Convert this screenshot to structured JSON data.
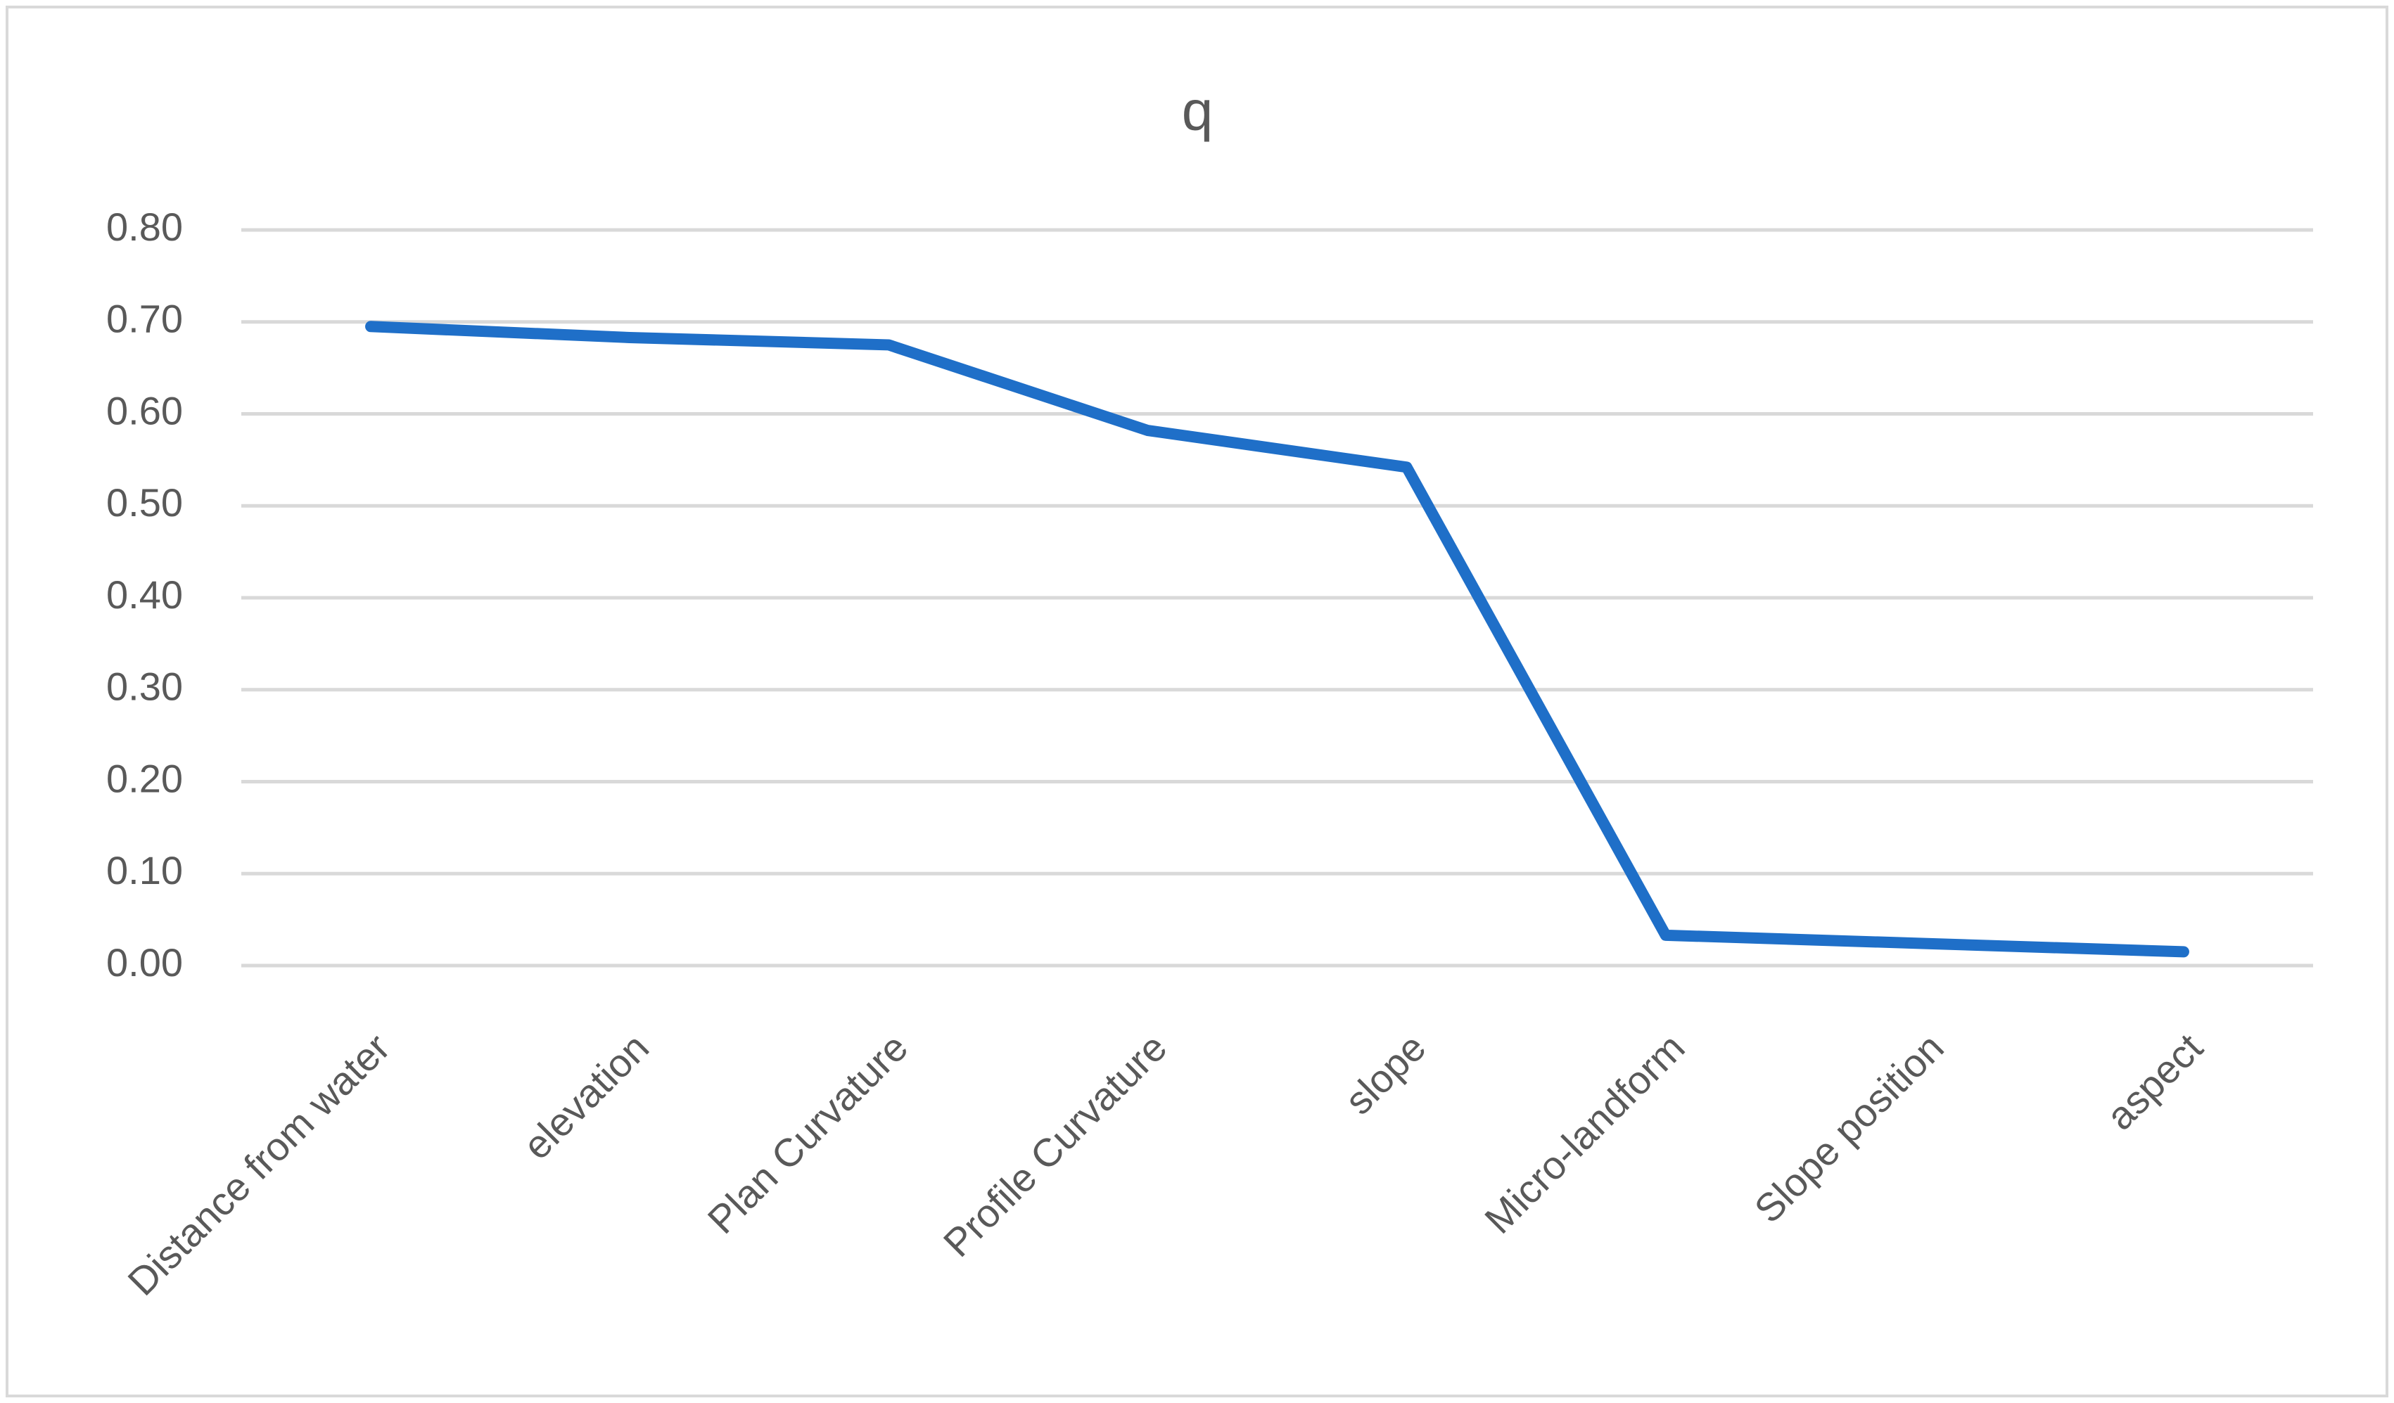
{
  "chart_data": {
    "type": "line",
    "title": "q",
    "categories": [
      "Distance from water",
      "elevation",
      "Plan Curvature",
      "Profile Curvature",
      "slope",
      "Micro-landform",
      "Slope position",
      "aspect"
    ],
    "series": [
      {
        "name": "q",
        "color": "#1f6fc8",
        "values": [
          0.695,
          0.683,
          0.675,
          0.582,
          0.542,
          0.033,
          0.024,
          0.015
        ]
      }
    ],
    "ylim": [
      0,
      0.8
    ],
    "yticks": [
      {
        "value": 0,
        "label": "0.00"
      },
      {
        "value": 0.1,
        "label": "0.10"
      },
      {
        "value": 0.2,
        "label": "0.20"
      },
      {
        "value": 0.3,
        "label": "0.30"
      },
      {
        "value": 0.4,
        "label": "0.40"
      },
      {
        "value": 0.5,
        "label": "0.50"
      },
      {
        "value": 0.6,
        "label": "0.60"
      },
      {
        "value": 0.7,
        "label": "0.70"
      },
      {
        "value": 0.8,
        "label": "0.80"
      }
    ],
    "grid": true
  }
}
